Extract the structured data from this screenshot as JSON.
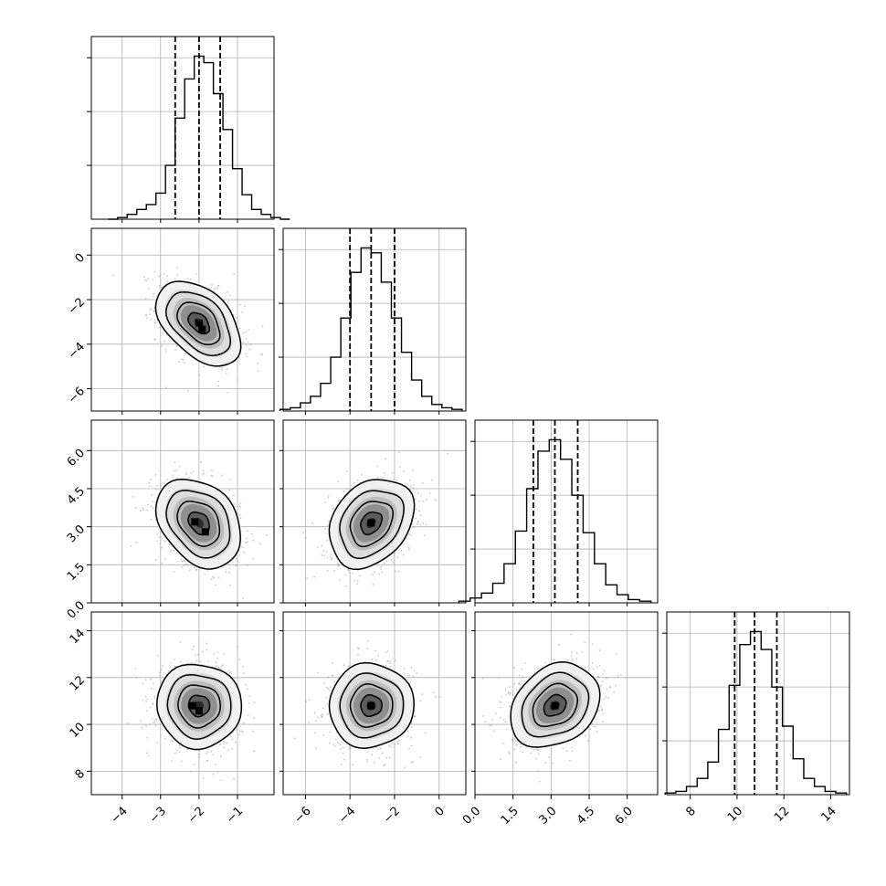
{
  "chart_data": {
    "type": "corner",
    "title": "",
    "parameters": [
      {
        "mean": -2.0,
        "sd": 0.55,
        "range": [
          -4.8,
          -0.05
        ],
        "ticks": [
          -4,
          -3,
          -2,
          -1
        ],
        "tick_labels": [
          "−4",
          "−3",
          "−2",
          "−1"
        ],
        "quantiles": [
          -2.62,
          -2.0,
          -1.45
        ],
        "hist_bins": [
          0.0,
          0.01,
          0.03,
          0.06,
          0.09,
          0.16,
          0.33,
          0.62,
          0.86,
          1.0,
          0.96,
          0.77,
          0.55,
          0.31,
          0.15,
          0.06,
          0.03,
          0.01,
          0.0
        ]
      },
      {
        "mean": -3.05,
        "sd": 0.95,
        "range": [
          -7.0,
          1.2
        ],
        "ticks": [
          -6,
          -4,
          -2,
          0
        ],
        "tick_labels": [
          "−6",
          "−4",
          "−2",
          "0"
        ],
        "quantiles": [
          -4.0,
          -3.05,
          -2.0
        ],
        "hist_bins": [
          0.01,
          0.02,
          0.05,
          0.09,
          0.17,
          0.33,
          0.57,
          0.85,
          1.0,
          0.97,
          0.79,
          0.57,
          0.36,
          0.19,
          0.09,
          0.04,
          0.02,
          0.01
        ]
      },
      {
        "mean": 3.15,
        "sd": 0.88,
        "range": [
          0.0,
          7.2
        ],
        "ticks": [
          0.0,
          1.5,
          3.0,
          4.5,
          6.0
        ],
        "tick_labels": [
          "0.0",
          "1.5",
          "3.0",
          "4.5",
          "6.0"
        ],
        "quantiles": [
          2.3,
          3.15,
          4.05
        ],
        "hist_bins": [
          0.01,
          0.03,
          0.06,
          0.12,
          0.24,
          0.44,
          0.7,
          0.93,
          1.0,
          0.88,
          0.66,
          0.43,
          0.24,
          0.11,
          0.05,
          0.02,
          0.01
        ]
      },
      {
        "mean": 10.8,
        "sd": 0.9,
        "range": [
          7.0,
          14.8
        ],
        "ticks": [
          8,
          10,
          12,
          14
        ],
        "tick_labels": [
          "8",
          "10",
          "12",
          "14"
        ],
        "quantiles": [
          9.9,
          10.75,
          11.7
        ],
        "hist_bins": [
          0.01,
          0.02,
          0.05,
          0.1,
          0.2,
          0.4,
          0.67,
          0.92,
          1.0,
          0.89,
          0.66,
          0.42,
          0.22,
          0.1,
          0.05,
          0.02,
          0.01
        ]
      }
    ],
    "correlations": [
      {
        "row": 1,
        "col": 0,
        "rho": -0.45
      },
      {
        "row": 2,
        "col": 0,
        "rho": -0.3
      },
      {
        "row": 2,
        "col": 1,
        "rho": 0.28
      },
      {
        "row": 3,
        "col": 0,
        "rho": -0.03
      },
      {
        "row": 3,
        "col": 1,
        "rho": 0.02
      },
      {
        "row": 3,
        "col": 2,
        "rho": 0.25
      }
    ],
    "contour_levels_sigma": [
      0.5,
      1.0,
      1.5,
      2.0
    ],
    "density_peak_offsets": [
      {
        "row": 1,
        "col": 0,
        "peaks": [
          [
            0.0,
            0.0
          ],
          [
            0.15,
            -0.3
          ]
        ]
      },
      {
        "row": 2,
        "col": 0,
        "peaks": [
          [
            -0.2,
            0.05
          ],
          [
            0.3,
            -0.4
          ]
        ]
      },
      {
        "row": 3,
        "col": 0,
        "peaks": [
          [
            -0.3,
            0.0
          ],
          [
            0.0,
            -0.25
          ]
        ]
      }
    ],
    "grid": true,
    "x_tick_rotation_deg": 45,
    "y_tick_rotation_deg": 45
  }
}
